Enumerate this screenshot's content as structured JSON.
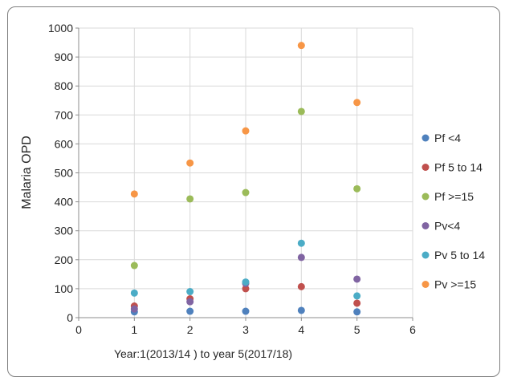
{
  "chart_data": {
    "type": "scatter",
    "title": "",
    "xlabel": "Year:1(2013/14 ) to year 5(2017/18)",
    "ylabel": "Malaria OPD",
    "xlim": [
      0,
      6
    ],
    "ylim": [
      0,
      1000
    ],
    "xticks": [
      0,
      1,
      2,
      3,
      4,
      5,
      6
    ],
    "yticks": [
      0,
      100,
      200,
      300,
      400,
      500,
      600,
      700,
      800,
      900,
      1000
    ],
    "grid": true,
    "legend_position": "right",
    "series": [
      {
        "name": "Pf <4",
        "color": "#4f81bd",
        "x": [
          1,
          2,
          3,
          4,
          5
        ],
        "y": [
          20,
          22,
          22,
          25,
          20
        ]
      },
      {
        "name": "Pf 5 to 14",
        "color": "#c0504d",
        "x": [
          1,
          2,
          3,
          4,
          5
        ],
        "y": [
          40,
          65,
          100,
          107,
          50
        ]
      },
      {
        "name": "Pf >=15",
        "color": "#9bbb59",
        "x": [
          1,
          2,
          3,
          4,
          5
        ],
        "y": [
          180,
          410,
          432,
          712,
          445
        ]
      },
      {
        "name": "Pv<4",
        "color": "#8064a2",
        "x": [
          1,
          2,
          3,
          4,
          5
        ],
        "y": [
          30,
          55,
          118,
          208,
          133
        ]
      },
      {
        "name": "Pv 5 to 14",
        "color": "#4bacc6",
        "x": [
          1,
          2,
          3,
          4,
          5
        ],
        "y": [
          85,
          90,
          123,
          257,
          75
        ]
      },
      {
        "name": "Pv >=15",
        "color": "#f79646",
        "x": [
          1,
          2,
          3,
          4,
          5
        ],
        "y": [
          427,
          534,
          645,
          940,
          743
        ]
      }
    ]
  }
}
